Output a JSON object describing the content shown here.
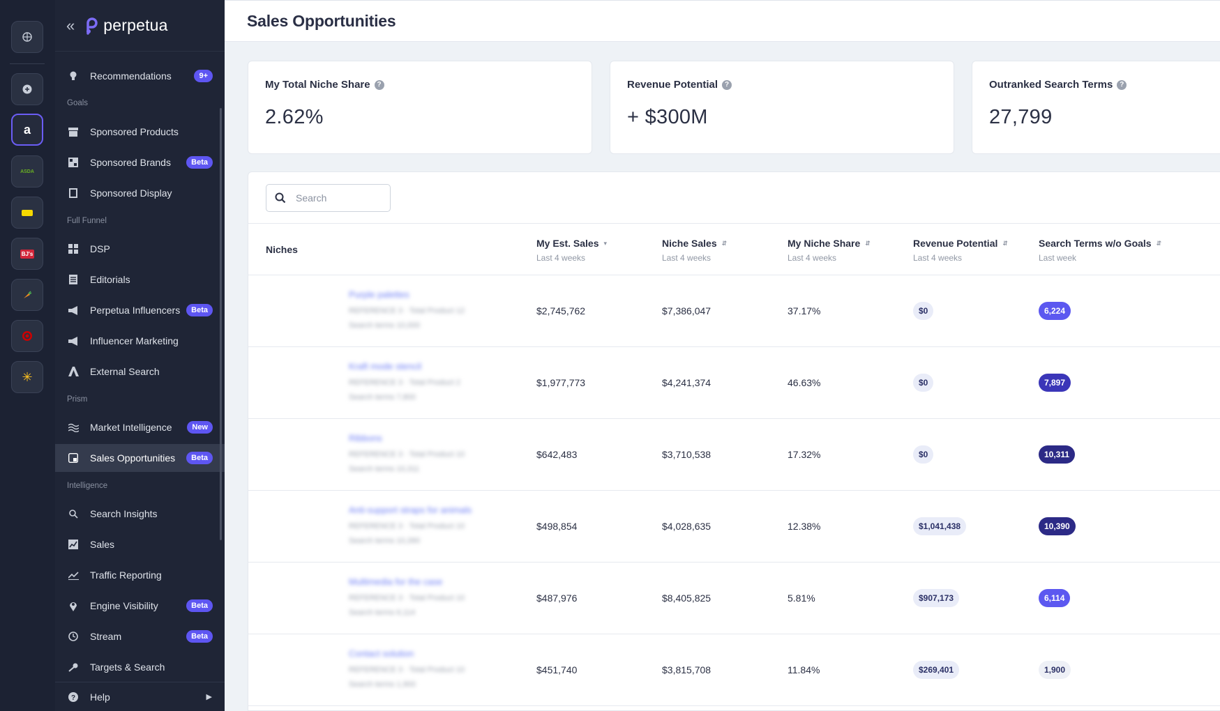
{
  "rail": {
    "items": [
      {
        "icon": "globe-icon",
        "glyph": "⊕"
      },
      {
        "icon": "add-icon",
        "glyph": "+"
      },
      {
        "icon": "amazon-icon",
        "glyph": "a"
      },
      {
        "icon": "asda-icon",
        "glyph": "ASDA"
      },
      {
        "icon": "tag-icon",
        "glyph": ""
      },
      {
        "icon": "bjs-icon",
        "glyph": "BJ's"
      },
      {
        "icon": "carrot-icon",
        "glyph": ""
      },
      {
        "icon": "target-icon",
        "glyph": ""
      },
      {
        "icon": "walmart-icon",
        "glyph": "✳"
      }
    ]
  },
  "sidebar": {
    "brand": "perpetua",
    "collapse_glyph": "«",
    "items": [
      {
        "label": "Recommendations",
        "badge": "9+",
        "icon": "lightbulb-icon"
      },
      {
        "label": "Sponsored Products",
        "badge": "",
        "icon": "box-icon"
      },
      {
        "label": "Sponsored Brands",
        "badge": "Beta",
        "icon": "brand-grid-icon"
      },
      {
        "label": "Sponsored Display",
        "badge": "",
        "icon": "display-icon"
      },
      {
        "label": "DSP",
        "badge": "",
        "icon": "grid-icon"
      },
      {
        "label": "Editorials",
        "badge": "",
        "icon": "document-icon"
      },
      {
        "label": "Perpetua Influencers",
        "badge": "Beta",
        "icon": "megaphone-icon"
      },
      {
        "label": "Influencer Marketing",
        "badge": "",
        "icon": "megaphone-icon"
      },
      {
        "label": "External Search",
        "badge": "",
        "icon": "external-search-icon"
      },
      {
        "label": "Market Intelligence",
        "badge": "New",
        "icon": "waves-icon"
      },
      {
        "label": "Sales Opportunities",
        "badge": "Beta",
        "icon": "opportunity-icon"
      },
      {
        "label": "Search Insights",
        "badge": "",
        "icon": "search-insights-icon"
      },
      {
        "label": "Sales",
        "badge": "",
        "icon": "chart-icon"
      },
      {
        "label": "Traffic Reporting",
        "badge": "",
        "icon": "trend-icon"
      },
      {
        "label": "Engine Visibility",
        "badge": "Beta",
        "icon": "pin-icon"
      },
      {
        "label": "Stream",
        "badge": "Beta",
        "icon": "clock-icon"
      },
      {
        "label": "Targets & Search",
        "badge": "",
        "icon": "key-icon"
      }
    ],
    "sections": {
      "goals": "Goals",
      "full_funnel": "Full Funnel",
      "prism": "Prism",
      "intelligence": "Intelligence"
    },
    "help": "Help"
  },
  "header": {
    "title": "Sales Opportunities"
  },
  "kpis": [
    {
      "label": "My Total Niche Share",
      "value": "2.62%"
    },
    {
      "label": "Revenue Potential",
      "value": "+ $300M"
    },
    {
      "label": "Outranked Search Terms",
      "value": "27,799"
    }
  ],
  "search": {
    "placeholder": "Search"
  },
  "table": {
    "niches_header": "Niches",
    "columns": [
      {
        "title": "My Est. Sales",
        "sub": "Last 4 weeks",
        "sort": "▾"
      },
      {
        "title": "Niche Sales",
        "sub": "Last 4 weeks",
        "sort": "⇵"
      },
      {
        "title": "My Niche Share",
        "sub": "Last 4 weeks",
        "sort": "⇵"
      },
      {
        "title": "Revenue Potential",
        "sub": "Last 4 weeks",
        "sort": "⇵"
      },
      {
        "title": "Search Terms w/o Goals",
        "sub": "Last week",
        "sort": "⇵"
      }
    ],
    "rows": [
      {
        "niche": "Purple palettes",
        "meta1": "REFERENCE 3 · Total Product 12",
        "meta2": "Search terms 10,000",
        "est_sales": "$2,745,762",
        "niche_sales": "$7,386,047",
        "share": "37.17%",
        "revenue": "$0",
        "terms": "6,224"
      },
      {
        "niche": "Kraft mode stencil",
        "meta1": "REFERENCE 3 · Total Product 2",
        "meta2": "Search terms 7,800",
        "est_sales": "$1,977,773",
        "niche_sales": "$4,241,374",
        "share": "46.63%",
        "revenue": "$0",
        "terms": "7,897"
      },
      {
        "niche": "Ribbons",
        "meta1": "REFERENCE 3 · Total Product 10",
        "meta2": "Search terms 10,311",
        "est_sales": "$642,483",
        "niche_sales": "$3,710,538",
        "share": "17.32%",
        "revenue": "$0",
        "terms": "10,311"
      },
      {
        "niche": "Anti-support straps for animals",
        "meta1": "REFERENCE 3 · Total Product 10",
        "meta2": "Search terms 10,390",
        "est_sales": "$498,854",
        "niche_sales": "$4,028,635",
        "share": "12.38%",
        "revenue": "$1,041,438",
        "terms": "10,390"
      },
      {
        "niche": "Multimedia for the case",
        "meta1": "REFERENCE 3 · Total Product 10",
        "meta2": "Search terms 6,114",
        "est_sales": "$487,976",
        "niche_sales": "$8,405,825",
        "share": "5.81%",
        "revenue": "$907,173",
        "terms": "6,114"
      },
      {
        "niche": "Contact solution",
        "meta1": "REFERENCE 3 · Total Product 10",
        "meta2": "Search terms 1,900",
        "est_sales": "$451,740",
        "niche_sales": "$3,815,708",
        "share": "11.84%",
        "revenue": "$269,401",
        "terms": "1,900"
      }
    ]
  },
  "colors": {
    "accent": "#5e56f2",
    "sidebar_bg": "#1f2536",
    "rail_bg": "#1c2233",
    "dark_pill": "#2c2a86"
  }
}
